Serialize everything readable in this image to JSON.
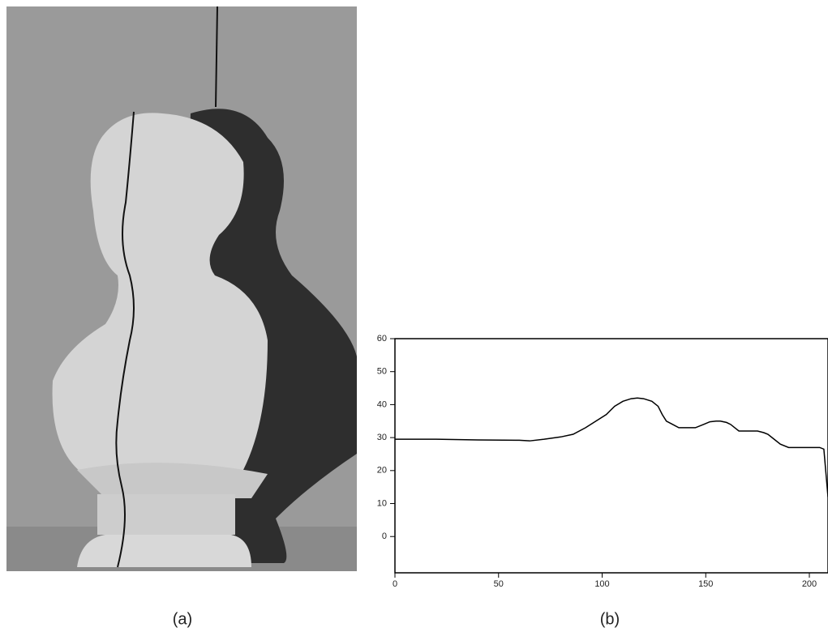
{
  "chart_data": {
    "type": "line",
    "x": [
      0,
      20,
      40,
      60,
      65,
      72,
      80,
      86,
      92,
      97,
      102,
      106,
      110,
      114,
      117,
      120,
      124,
      127,
      129,
      131,
      134,
      137,
      141,
      145,
      149,
      152,
      155,
      157,
      160,
      162,
      164,
      166,
      170,
      175,
      178,
      180,
      183,
      186,
      190,
      195,
      200,
      205,
      207,
      209
    ],
    "series": [
      {
        "color": "#000000",
        "values": [
          29.5,
          29.5,
          29.3,
          29.2,
          29,
          29.5,
          30.2,
          31,
          33,
          35,
          37,
          39.5,
          41,
          41.8,
          42,
          41.8,
          41,
          39.5,
          37,
          35,
          34,
          33,
          33,
          33,
          34,
          34.8,
          35,
          35,
          34.6,
          34,
          33,
          32,
          32,
          32,
          31.5,
          31,
          29.5,
          28,
          27,
          27,
          27,
          27,
          26.5,
          12
        ]
      }
    ],
    "xlim": [
      0,
      209
    ],
    "ylim": [
      -11,
      60
    ],
    "xticks": [
      0,
      50,
      100,
      150,
      200
    ],
    "yticks": [
      0,
      10,
      20,
      30,
      40,
      50,
      60
    ]
  },
  "captions": [
    "(a)",
    "(b)"
  ]
}
